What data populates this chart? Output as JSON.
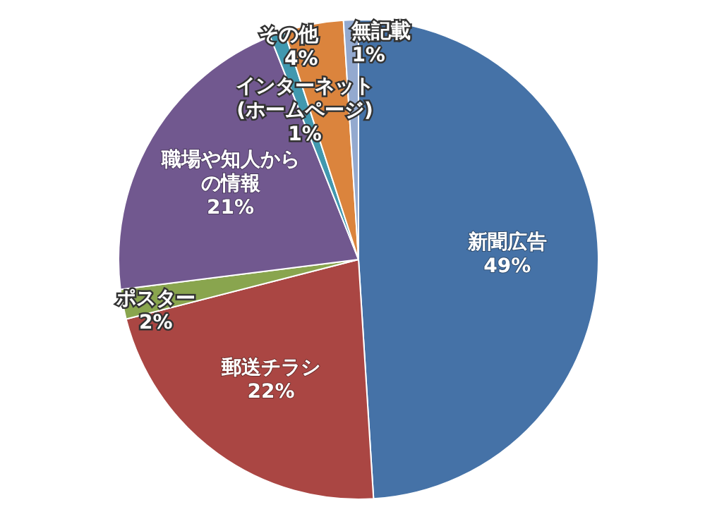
{
  "chart_data": {
    "type": "pie",
    "categories": [
      "新聞広告",
      "郵送チラシ",
      "ポスター",
      "職場や知人からの情報",
      "インターネット(ホームページ)",
      "その他",
      "無記載"
    ],
    "values": [
      49,
      22,
      2,
      21,
      1,
      4,
      1
    ],
    "colors": [
      "#4572a7",
      "#aa4643",
      "#89a54e",
      "#71588f",
      "#4198af",
      "#db843d",
      "#93a9cf"
    ],
    "value_labels": [
      "49%",
      "22%",
      "2%",
      "21%",
      "1%",
      "4%",
      "1%"
    ]
  }
}
